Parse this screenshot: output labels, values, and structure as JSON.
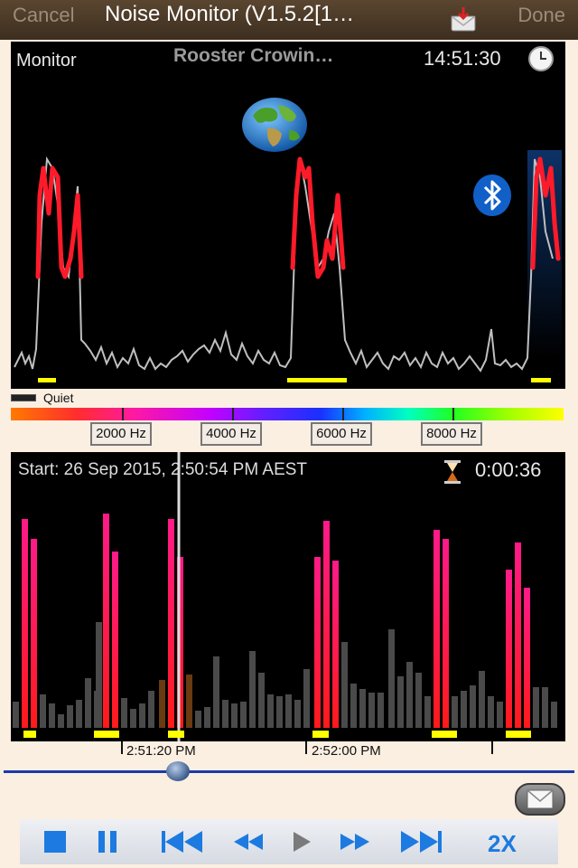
{
  "nav": {
    "cancel": "Cancel",
    "title": "Noise Monitor (V1.5.2[1…",
    "done": "Done",
    "inbox_icon": "inbox-download-icon"
  },
  "monitor": {
    "label": "Monitor",
    "sound": "Rooster Crowin…",
    "time": "14:51:30",
    "icons": [
      "clock-icon",
      "globe-icon",
      "bluetooth-icon"
    ]
  },
  "legend": {
    "label": "Quiet"
  },
  "frequency": {
    "labels": [
      "2000 Hz",
      "4000 Hz",
      "6000 Hz",
      "8000 Hz"
    ]
  },
  "history": {
    "start": "Start: 26 Sep 2015, 2:50:54 PM AEST",
    "elapsed": "0:00:36"
  },
  "timeline": {
    "labels": [
      "2:51:20 PM",
      "2:52:00 PM"
    ]
  },
  "transport": {
    "buttons": [
      "stop",
      "pause",
      "skip-to-start",
      "rewind",
      "play",
      "fast-forward",
      "skip-to-end"
    ],
    "speed": "2X"
  },
  "colors": {
    "loud": "#ff1a2a",
    "quiet": "#bfbfbf",
    "accent": "#1c7ae0",
    "highlight": "#ffff00"
  }
}
